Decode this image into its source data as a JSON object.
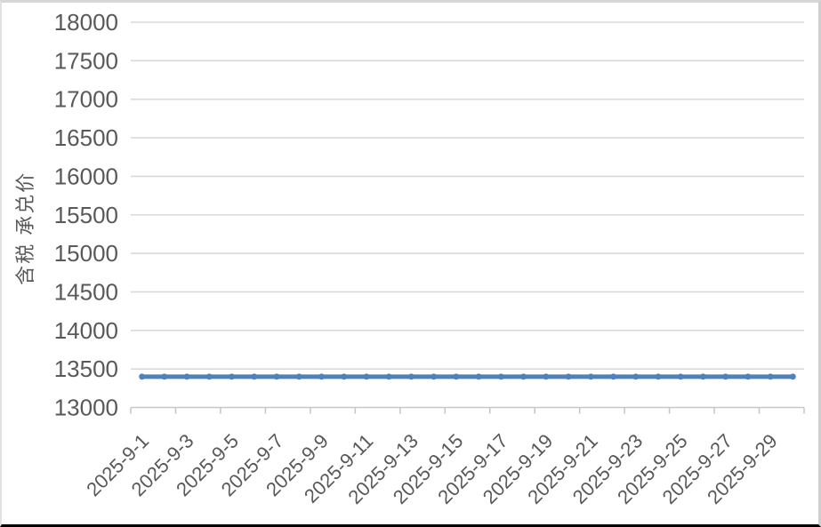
{
  "chart_data": {
    "type": "line",
    "title": "",
    "xlabel": "",
    "ylabel": "含税 承兑价",
    "x": [
      "2025-9-1",
      "2025-9-2",
      "2025-9-3",
      "2025-9-4",
      "2025-9-5",
      "2025-9-6",
      "2025-9-7",
      "2025-9-8",
      "2025-9-9",
      "2025-9-10",
      "2025-9-11",
      "2025-9-12",
      "2025-9-13",
      "2025-9-14",
      "2025-9-15",
      "2025-9-16",
      "2025-9-17",
      "2025-9-18",
      "2025-9-19",
      "2025-9-20",
      "2025-9-21",
      "2025-9-22",
      "2025-9-23",
      "2025-9-24",
      "2025-9-25",
      "2025-9-26",
      "2025-9-27",
      "2025-9-28",
      "2025-9-29",
      "2025-9-30"
    ],
    "series": [
      {
        "name": "含税 承兑价",
        "values": [
          13400,
          13400,
          13400,
          13400,
          13400,
          13400,
          13400,
          13400,
          13400,
          13400,
          13400,
          13400,
          13400,
          13400,
          13400,
          13400,
          13400,
          13400,
          13400,
          13400,
          13400,
          13400,
          13400,
          13400,
          13400,
          13400,
          13400,
          13400,
          13400,
          13400
        ],
        "color": "#4F81BD",
        "marker": true
      }
    ],
    "ylim": [
      13000,
      18000
    ],
    "y_tick_step": 500,
    "y_tick_labels": [
      "13000",
      "13500",
      "14000",
      "14500",
      "15000",
      "15500",
      "16000",
      "16500",
      "17000",
      "17500",
      "18000"
    ],
    "x_tick_labels": [
      "2025-9-1",
      "2025-9-3",
      "2025-9-5",
      "2025-9-7",
      "2025-9-9",
      "2025-9-11",
      "2025-9-13",
      "2025-9-15",
      "2025-9-17",
      "2025-9-19",
      "2025-9-21",
      "2025-9-23",
      "2025-9-25",
      "2025-9-27",
      "2025-9-29"
    ],
    "x_label_rotation_deg": -45,
    "grid": true,
    "legend": "none",
    "colors": {
      "series_line": "#4F81BD",
      "gridline": "#D9D9D9",
      "axis_line": "#C8C8C8",
      "tick_mark": "#C8C8C8",
      "text": "#595959",
      "background": "#FFFFFF"
    }
  }
}
